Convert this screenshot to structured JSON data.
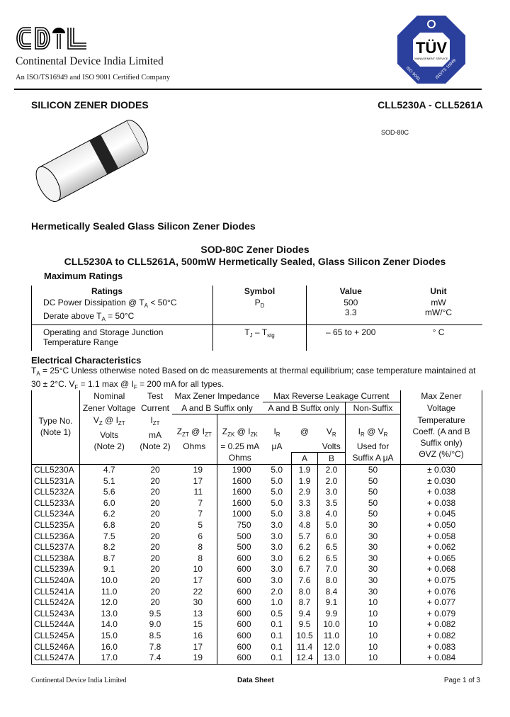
{
  "header": {
    "logo_text": "CDIL",
    "company": "Continental Device India Limited",
    "certification": "An ISO/TS16949 and ISO 9001 Certified Company",
    "badge": {
      "name": "TÜV",
      "sub": "MANAGEMENT SERVICE",
      "left": "ISO 9001",
      "right": "ISO/TS 16949",
      "color": "#2b3f9c"
    }
  },
  "title_left": "SILICON ZENER DIODES",
  "title_right": "CLL5230A - CLL5261A",
  "package_label": "SOD-80C",
  "subtitle": "Hermetically Sealed Glass Silicon Zener Diodes",
  "heading1": "SOD-80C Zener Diodes",
  "heading2": "CLL5230A to CLL5261A, 500mW Hermetically Sealed, Glass Silicon Zener Diodes",
  "max_ratings": {
    "title": "Maximum Ratings",
    "headers": [
      "Ratings",
      "Symbol",
      "Value",
      "Unit"
    ],
    "rows": [
      {
        "r1": "DC Power Dissipation @ T",
        "r1sub": "A",
        "r1tail": " < 50°C",
        "r2": "Derate above T",
        "r2sub": "A",
        "r2tail": " = 50°C",
        "sym": "P",
        "symsub": "D",
        "v1": "500",
        "v2": "3.3",
        "u1": "mW",
        "u2": "mW/°C"
      },
      {
        "r1": "Operating and Storage Junction",
        "r2": "Temperature Range",
        "sym": "T",
        "symsub": "J",
        "sym2": " – T",
        "sym2sub": "stg",
        "v1": "– 65 to + 200",
        "u1": "° C"
      }
    ]
  },
  "elec": {
    "title": "Electrical Characteristics",
    "note_a": "T",
    "note_a_sub": "A",
    "note_b": " = 25°C Unless otherwise noted Based on dc measurements at thermal equilibrium; case temperature maintained at",
    "note_c": "30 ± 2°C. V",
    "note_c_sub": "F",
    "note_d": " = 1.1 max @ I",
    "note_d_sub": "F",
    "note_e": " = 200 mA for all types.",
    "h": {
      "nominal": "Nominal",
      "zener_voltage": "Zener Voltage",
      "vz": "V",
      "vz_sub": "Z",
      "at_izt": " @ I",
      "izt_sub": "ZT",
      "volts": "Volts",
      "note2": "(Note 2)",
      "test": "Test",
      "current": "Current",
      "iz": "I",
      "iz_sub": "ZT",
      "ma": "mA",
      "max_imp": "Max Zener Impedance",
      "ab_only": "A and B Suffix only",
      "zzt": "Z",
      "zzt_sub": "ZT",
      "zzt_at": " @ I",
      "zzt_at_sub": "ZT",
      "ohms": "Ohms",
      "zzk": "Z",
      "zzk_sub": "ZK",
      "zzk_at": " @ I",
      "zzk_at_sub": "ZK",
      "zzk_cur": "= 0.25 mA",
      "leak": "Max Reverse Leakage Current",
      "non_suffix": "Non-Suffix",
      "ir": "I",
      "ir_sub": "R",
      "ua": "μA",
      "at": "@",
      "vr": "V",
      "vr_sub": "R",
      "volts2": "Volts",
      "a": "A",
      "b": "B",
      "irvr": "I",
      "irvr_sub": "R",
      "irvr_at": " @ V",
      "irvr_at_sub": "R",
      "used_for": "Used for",
      "suffix_a": "Suffix A μA",
      "type": "Type No.",
      "note1": "(Note 1)",
      "coeff1": "Max Zener",
      "coeff2": "Voltage",
      "coeff3": "Temperature",
      "coeff4": "Coeff. (A and B",
      "coeff5": "Suffix only)",
      "coeff6": "ΘVZ (%/°C)"
    },
    "rows": [
      [
        "CLL5230A",
        "4.7",
        "20",
        "19",
        "1900",
        "5.0",
        "1.9",
        "2.0",
        "50",
        "± 0.030"
      ],
      [
        "CLL5231A",
        "5.1",
        "20",
        "17",
        "1600",
        "5.0",
        "1.9",
        "2.0",
        "50",
        "± 0.030"
      ],
      [
        "CLL5232A",
        "5.6",
        "20",
        "11",
        "1600",
        "5.0",
        "2.9",
        "3.0",
        "50",
        "+ 0.038"
      ],
      [
        "CLL5233A",
        "6.0",
        "20",
        "7",
        "1600",
        "5.0",
        "3.3",
        "3.5",
        "50",
        "+ 0.038"
      ],
      [
        "CLL5234A",
        "6.2",
        "20",
        "7",
        "1000",
        "5.0",
        "3.8",
        "4.0",
        "50",
        "+ 0.045"
      ],
      [
        "CLL5235A",
        "6.8",
        "20",
        "5",
        "750",
        "3.0",
        "4.8",
        "5.0",
        "30",
        "+ 0.050"
      ],
      [
        "CLL5236A",
        "7.5",
        "20",
        "6",
        "500",
        "3.0",
        "5.7",
        "6.0",
        "30",
        "+ 0.058"
      ],
      [
        "CLL5237A",
        "8.2",
        "20",
        "8",
        "500",
        "3.0",
        "6.2",
        "6.5",
        "30",
        "+ 0.062"
      ],
      [
        "CLL5238A",
        "8.7",
        "20",
        "8",
        "600",
        "3.0",
        "6.2",
        "6.5",
        "30",
        "+ 0.065"
      ],
      [
        "CLL5239A",
        "9.1",
        "20",
        "10",
        "600",
        "3.0",
        "6.7",
        "7.0",
        "30",
        "+ 0.068"
      ],
      [
        "CLL5240A",
        "10.0",
        "20",
        "17",
        "600",
        "3.0",
        "7.6",
        "8.0",
        "30",
        "+ 0.075"
      ],
      [
        "CLL5241A",
        "11.0",
        "20",
        "22",
        "600",
        "2.0",
        "8.0",
        "8.4",
        "30",
        "+ 0.076"
      ],
      [
        "CLL5242A",
        "12.0",
        "20",
        "30",
        "600",
        "1.0",
        "8.7",
        "9.1",
        "10",
        "+ 0.077"
      ],
      [
        "CLL5243A",
        "13.0",
        "9.5",
        "13",
        "600",
        "0.5",
        "9.4",
        "9.9",
        "10",
        "+ 0.079"
      ],
      [
        "CLL5244A",
        "14.0",
        "9.0",
        "15",
        "600",
        "0.1",
        "9.5",
        "10.0",
        "10",
        "+ 0.082"
      ],
      [
        "CLL5245A",
        "15.0",
        "8.5",
        "16",
        "600",
        "0.1",
        "10.5",
        "11.0",
        "10",
        "+ 0.082"
      ],
      [
        "CLL5246A",
        "16.0",
        "7.8",
        "17",
        "600",
        "0.1",
        "11.4",
        "12.0",
        "10",
        "+ 0.083"
      ],
      [
        "CLL5247A",
        "17.0",
        "7.4",
        "19",
        "600",
        "0.1",
        "12.4",
        "13.0",
        "10",
        "+ 0.084"
      ]
    ]
  },
  "footer": {
    "left": "Continental Device India Limited",
    "center": "Data Sheet",
    "right": "Page 1 of 3"
  }
}
